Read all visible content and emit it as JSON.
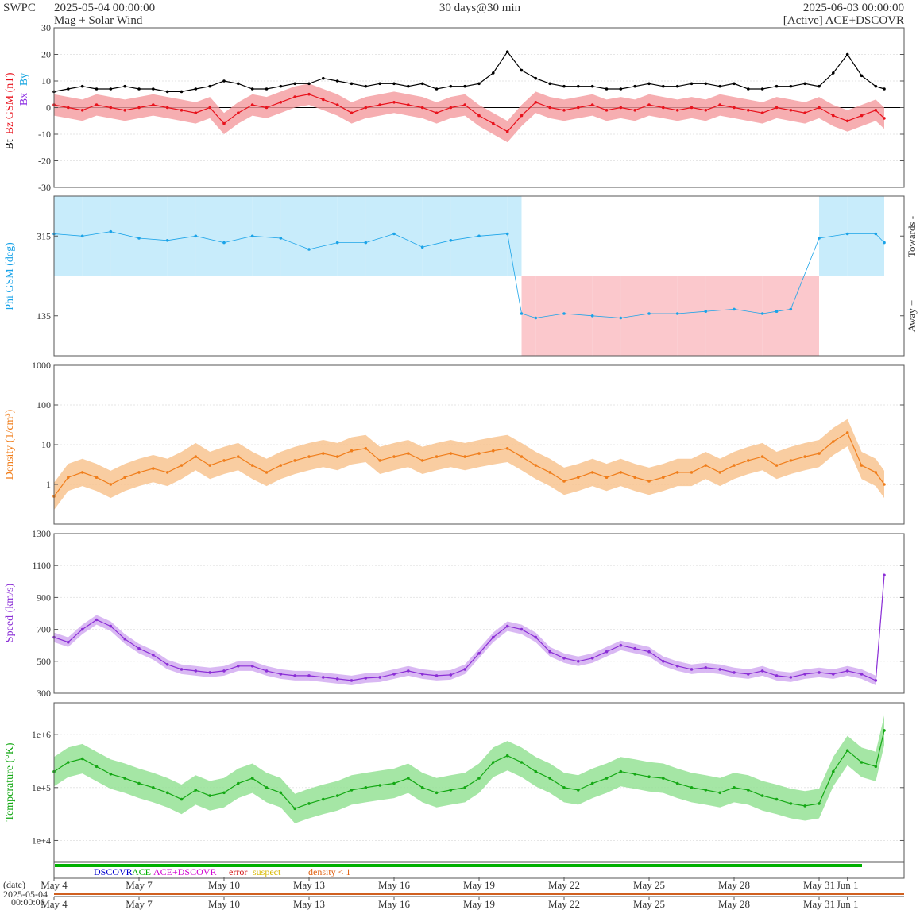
{
  "header": {
    "brand": "SWPC",
    "start": "2025-05-04 00:00:00",
    "span": "30 days@30 min",
    "end": "2025-06-03 00:00:00",
    "product": "Mag + Solar Wind",
    "source": "[Active] ACE+DSCOVR"
  },
  "colors": {
    "bt": "#000000",
    "bz": "#e8121c",
    "bz_fill": "#f49a9e",
    "bx": "#8a2be2",
    "by": "#16a5e0",
    "phi": "#1aa3e8",
    "phi_towards": "#c8ecfb",
    "phi_away": "#fbc8cc",
    "density": "#f07d1a",
    "density_fill": "#f8c08a",
    "speed": "#8b2fd6",
    "speed_fill": "#cfa6f0",
    "temp": "#14a814",
    "temp_fill": "#8fe08f",
    "dscovr": "#0000cc",
    "ace": "#00b000",
    "both": "#d000d0",
    "error": "#d01010",
    "suspect": "#d8b800",
    "dlow": "#e06010"
  },
  "legend": {
    "dscovr": "DSCOVR",
    "ace": "ACE",
    "both": "ACE+DSCOVR",
    "error": "error",
    "suspect": "suspect",
    "density_low": "density < 1"
  },
  "bottom": {
    "date_label": "(date)",
    "start_date": "2025-05-04",
    "start_time": "00:00:00"
  },
  "chart_data": [
    {
      "type": "line",
      "panel": "mag",
      "ylabel": [
        "Bt",
        "Bz GSM (nT)",
        "Bx",
        "By"
      ],
      "ylim": [
        -30,
        30
      ],
      "yticks": [
        30,
        20,
        10,
        0,
        -10,
        -20,
        -30
      ],
      "x_unit": "days since 2025-05-04 00:00:00",
      "series": [
        {
          "name": "Bt",
          "x": [
            0,
            0.5,
            1,
            1.5,
            2,
            2.5,
            3,
            3.5,
            4,
            4.5,
            5,
            5.5,
            6,
            6.5,
            7,
            7.5,
            8,
            8.5,
            9,
            9.5,
            10,
            10.5,
            11,
            11.5,
            12,
            12.5,
            13,
            13.5,
            14,
            14.5,
            15,
            15.5,
            16,
            16.5,
            17,
            17.5,
            18,
            18.5,
            19,
            19.5,
            20,
            20.5,
            21,
            21.5,
            22,
            22.5,
            23,
            23.5,
            24,
            24.5,
            25,
            25.5,
            26,
            26.5,
            27,
            27.5,
            28,
            28.5,
            29,
            29.3
          ],
          "values": [
            6,
            7,
            8,
            7,
            7,
            8,
            7,
            7,
            6,
            6,
            7,
            8,
            10,
            9,
            7,
            7,
            8,
            9,
            9,
            11,
            10,
            9,
            8,
            9,
            9,
            8,
            9,
            7,
            8,
            8,
            9,
            13,
            21,
            14,
            11,
            9,
            8,
            8,
            8,
            7,
            7,
            8,
            9,
            8,
            8,
            9,
            9,
            8,
            9,
            7,
            7,
            8,
            8,
            9,
            8,
            13,
            20,
            12,
            8,
            7
          ]
        }
      ]
    },
    {
      "type": "line",
      "panel": "mag",
      "series": [
        {
          "name": "Bz",
          "x": [
            0,
            0.5,
            1,
            1.5,
            2,
            2.5,
            3,
            3.5,
            4,
            4.5,
            5,
            5.5,
            6,
            6.5,
            7,
            7.5,
            8,
            8.5,
            9,
            9.5,
            10,
            10.5,
            11,
            11.5,
            12,
            12.5,
            13,
            13.5,
            14,
            14.5,
            15,
            15.5,
            16,
            16.5,
            17,
            17.5,
            18,
            18.5,
            19,
            19.5,
            20,
            20.5,
            21,
            21.5,
            22,
            22.5,
            23,
            23.5,
            24,
            24.5,
            25,
            25.5,
            26,
            26.5,
            27,
            27.5,
            28,
            28.5,
            29,
            29.3
          ],
          "values": [
            1,
            0,
            -1,
            1,
            0,
            -1,
            0,
            1,
            0,
            -1,
            -2,
            0,
            -6,
            -2,
            1,
            0,
            2,
            4,
            5,
            3,
            1,
            -2,
            0,
            1,
            2,
            1,
            0,
            -2,
            0,
            1,
            -3,
            -6,
            -9,
            -3,
            2,
            0,
            -1,
            0,
            1,
            -1,
            0,
            -1,
            1,
            0,
            -1,
            0,
            -1,
            1,
            0,
            -1,
            -2,
            0,
            -1,
            -2,
            0,
            -3,
            -5,
            -3,
            -1,
            -4
          ]
        }
      ]
    },
    {
      "type": "scatter",
      "panel": "phi",
      "ylabel": "Phi GSM (deg)",
      "yticks": [
        315,
        135
      ],
      "ylim": [
        45,
        405
      ],
      "right_labels": [
        "Towards -",
        "Away +"
      ],
      "x_unit": "days since 2025-05-04 00:00:00",
      "series": [
        {
          "name": "Phi",
          "x": [
            0,
            1,
            2,
            3,
            4,
            5,
            6,
            7,
            8,
            9,
            10,
            11,
            12,
            13,
            14,
            15,
            16,
            16.5,
            17,
            18,
            19,
            20,
            21,
            22,
            23,
            24,
            25,
            25.5,
            26,
            27,
            28,
            29,
            29.3
          ],
          "values": [
            320,
            315,
            325,
            310,
            305,
            315,
            300,
            315,
            310,
            285,
            300,
            300,
            320,
            290,
            305,
            315,
            320,
            140,
            130,
            140,
            135,
            130,
            140,
            140,
            145,
            150,
            140,
            145,
            150,
            310,
            320,
            320,
            300
          ]
        }
      ]
    },
    {
      "type": "line",
      "panel": "density",
      "ylabel": "Density (1/cm³)",
      "yscale": "log",
      "ylim": [
        0.1,
        1000
      ],
      "yticks": [
        1000,
        100,
        10,
        1
      ],
      "x_unit": "days since 2025-05-04 00:00:00",
      "series": [
        {
          "name": "Density",
          "x": [
            0,
            0.5,
            1,
            1.5,
            2,
            2.5,
            3,
            3.5,
            4,
            4.5,
            5,
            5.5,
            6,
            6.5,
            7,
            7.5,
            8,
            8.5,
            9,
            9.5,
            10,
            10.5,
            11,
            11.5,
            12,
            12.5,
            13,
            13.5,
            14,
            14.5,
            15,
            15.5,
            16,
            16.5,
            17,
            17.5,
            18,
            18.5,
            19,
            19.5,
            20,
            20.5,
            21,
            21.5,
            22,
            22.5,
            23,
            23.5,
            24,
            24.5,
            25,
            25.5,
            26,
            26.5,
            27,
            27.5,
            28,
            28.5,
            29,
            29.3
          ],
          "values": [
            0.5,
            1.5,
            2,
            1.5,
            1,
            1.5,
            2,
            2.5,
            2,
            3,
            5,
            3,
            4,
            5,
            3,
            2,
            3,
            4,
            5,
            6,
            5,
            7,
            8,
            4,
            5,
            6,
            4,
            5,
            6,
            5,
            6,
            7,
            8,
            5,
            3,
            2,
            1.2,
            1.5,
            2,
            1.5,
            2,
            1.5,
            1.2,
            1.5,
            2,
            2,
            3,
            2,
            3,
            4,
            5,
            3,
            4,
            5,
            6,
            12,
            20,
            3,
            2,
            1
          ]
        }
      ]
    },
    {
      "type": "line",
      "panel": "speed",
      "ylabel": "Speed (km/s)",
      "ylim": [
        300,
        1300
      ],
      "yticks": [
        1300,
        1100,
        900,
        700,
        500,
        300
      ],
      "x_unit": "days since 2025-05-04 00:00:00",
      "series": [
        {
          "name": "Speed",
          "x": [
            0,
            0.5,
            1,
            1.5,
            2,
            2.5,
            3,
            3.5,
            4,
            4.5,
            5,
            5.5,
            6,
            6.5,
            7,
            7.5,
            8,
            8.5,
            9,
            9.5,
            10,
            10.5,
            11,
            11.5,
            12,
            12.5,
            13,
            13.5,
            14,
            14.5,
            15,
            15.5,
            16,
            16.5,
            17,
            17.5,
            18,
            18.5,
            19,
            19.5,
            20,
            20.5,
            21,
            21.5,
            22,
            22.5,
            23,
            23.5,
            24,
            24.5,
            25,
            25.5,
            26,
            26.5,
            27,
            27.5,
            28,
            28.5,
            29,
            29.3
          ],
          "values": [
            650,
            620,
            700,
            760,
            720,
            640,
            580,
            540,
            480,
            450,
            440,
            430,
            440,
            470,
            470,
            440,
            420,
            410,
            410,
            400,
            390,
            380,
            395,
            400,
            420,
            440,
            420,
            410,
            415,
            450,
            550,
            650,
            720,
            700,
            650,
            560,
            520,
            500,
            520,
            560,
            600,
            580,
            560,
            500,
            470,
            450,
            460,
            450,
            430,
            420,
            440,
            410,
            400,
            420,
            430,
            420,
            440,
            420,
            380,
            1040
          ]
        }
      ]
    },
    {
      "type": "line",
      "panel": "temperature",
      "ylabel": "Temperature (°K)",
      "yscale": "log",
      "yticks": [
        "1e+6",
        "1e+5",
        "1e+4"
      ],
      "ylim": [
        4000,
        4000000
      ],
      "x_unit": "days since 2025-05-04 00:00:00",
      "series": [
        {
          "name": "Temperature",
          "x": [
            0,
            0.5,
            1,
            1.5,
            2,
            2.5,
            3,
            3.5,
            4,
            4.5,
            5,
            5.5,
            6,
            6.5,
            7,
            7.5,
            8,
            8.5,
            9,
            9.5,
            10,
            10.5,
            11,
            11.5,
            12,
            12.5,
            13,
            13.5,
            14,
            14.5,
            15,
            15.5,
            16,
            16.5,
            17,
            17.5,
            18,
            18.5,
            19,
            19.5,
            20,
            20.5,
            21,
            21.5,
            22,
            22.5,
            23,
            23.5,
            24,
            24.5,
            25,
            25.5,
            26,
            26.5,
            27,
            27.5,
            28,
            28.5,
            29,
            29.3
          ],
          "values": [
            200000,
            300000,
            350000,
            250000,
            180000,
            150000,
            120000,
            100000,
            80000,
            60000,
            90000,
            70000,
            80000,
            120000,
            150000,
            100000,
            80000,
            40000,
            50000,
            60000,
            70000,
            90000,
            100000,
            110000,
            120000,
            150000,
            100000,
            80000,
            90000,
            100000,
            150000,
            300000,
            400000,
            300000,
            200000,
            150000,
            100000,
            90000,
            120000,
            150000,
            200000,
            180000,
            160000,
            150000,
            120000,
            100000,
            90000,
            80000,
            100000,
            90000,
            70000,
            60000,
            50000,
            45000,
            50000,
            200000,
            500000,
            300000,
            250000,
            1200000
          ]
        }
      ]
    },
    {
      "type": "table",
      "panel": "source_bar",
      "x_ticks": [
        "May 4",
        "May 7",
        "May 10",
        "May 13",
        "May 16",
        "May 19",
        "May 22",
        "May 25",
        "May 28",
        "May 31",
        "Jun 1"
      ],
      "x_tick_days": [
        0,
        3,
        6,
        9,
        12,
        15,
        18,
        21,
        24,
        27,
        28
      ]
    }
  ]
}
